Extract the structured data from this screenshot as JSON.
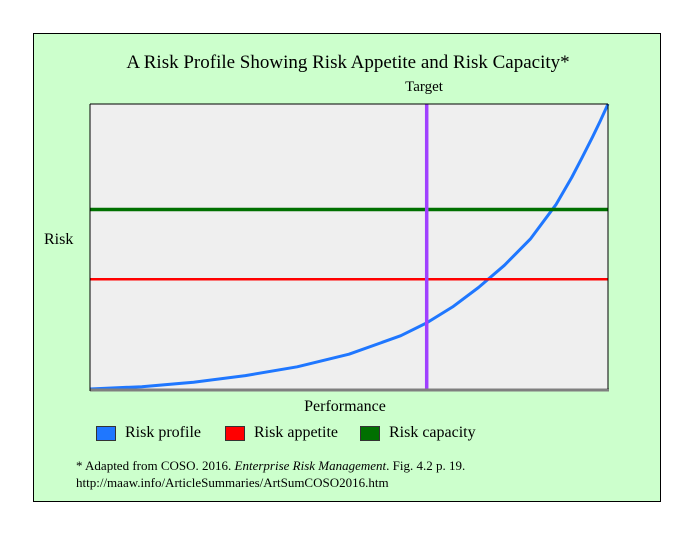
{
  "colors": {
    "frame_bg": "#ccffcc",
    "plot_bg": "#efefef",
    "axis": "#7f7f7f",
    "profile": "#1f77ff",
    "appetite": "#ff0000",
    "capacity": "#007000",
    "target": "#a040ff"
  },
  "chart_data": {
    "type": "line",
    "title": "A Risk Profile Showing Risk Appetite and Risk Capacity*",
    "xlabel": "Performance",
    "ylabel": "Risk",
    "xlim": [
      0,
      1
    ],
    "ylim": [
      0,
      1
    ],
    "grid": false,
    "legend_position": "bottom",
    "series": [
      {
        "name": "Risk profile",
        "color": "#1f77ff",
        "x": [
          0,
          0.1,
          0.2,
          0.3,
          0.4,
          0.5,
          0.6,
          0.65,
          0.7,
          0.75,
          0.8,
          0.85,
          0.9,
          0.93,
          0.95,
          0.97,
          0.985,
          0.995,
          1.0
        ],
        "y": [
          0,
          0.008,
          0.024,
          0.047,
          0.078,
          0.122,
          0.187,
          0.232,
          0.288,
          0.356,
          0.434,
          0.526,
          0.648,
          0.742,
          0.812,
          0.884,
          0.94,
          0.98,
          1.0
        ]
      }
    ],
    "reference_lines": [
      {
        "name": "Risk appetite",
        "orientation": "horizontal",
        "y": 0.385,
        "color": "#ff0000"
      },
      {
        "name": "Risk capacity",
        "orientation": "horizontal",
        "y": 0.63,
        "color": "#007000"
      },
      {
        "name": "Target",
        "orientation": "vertical",
        "x": 0.65,
        "color": "#a040ff"
      }
    ],
    "annotations": [
      {
        "text": "Target"
      }
    ]
  },
  "legend": [
    {
      "label": "Risk profile",
      "color": "#1f77ff"
    },
    {
      "label": "Risk appetite",
      "color": "#ff0000"
    },
    {
      "label": "Risk capacity",
      "color": "#007000"
    }
  ],
  "footnote": {
    "prefix": "* Adapted from COSO. 2016. ",
    "italic": "Enterprise Risk Management",
    "suffix": ". Fig. 4.2 p. 19.",
    "line2": "http://maaw.info/ArticleSummaries/ArtSumCOSO2016.htm"
  }
}
